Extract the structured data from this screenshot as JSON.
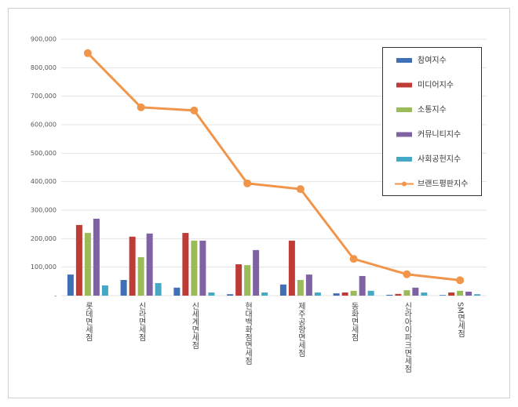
{
  "chart_data": {
    "type": "bar",
    "categories": [
      "롯데면세점",
      "신라면세점",
      "신세계면세점",
      "현대백화점면세점",
      "제주공항면세점",
      "동화면세점",
      "신라아이파크면세점",
      "SM면세점"
    ],
    "series": [
      {
        "name": "참여지수",
        "type": "bar",
        "color": "#3f6fb5",
        "values": [
          74000,
          55000,
          28000,
          5000,
          39000,
          8000,
          3000,
          2000
        ]
      },
      {
        "name": "미디어지수",
        "type": "bar",
        "color": "#be3b36",
        "values": [
          248000,
          207000,
          220000,
          110000,
          193000,
          11000,
          6000,
          11000
        ]
      },
      {
        "name": "소통지수",
        "type": "bar",
        "color": "#9bbb59",
        "values": [
          220000,
          135000,
          193000,
          107000,
          55000,
          17000,
          19000,
          17000
        ]
      },
      {
        "name": "커뮤니티지수",
        "type": "bar",
        "color": "#7f62a3",
        "values": [
          270000,
          218000,
          193000,
          160000,
          74000,
          69000,
          28000,
          14000
        ]
      },
      {
        "name": "사회공헌지수",
        "type": "bar",
        "color": "#45a9c6",
        "values": [
          36000,
          44000,
          11000,
          11000,
          11000,
          17000,
          11000,
          5000
        ]
      },
      {
        "name": "브랜드평판지수",
        "type": "line",
        "color": "#f0954a",
        "values": [
          851000,
          661000,
          650000,
          394000,
          374000,
          129000,
          75000,
          54000
        ]
      }
    ],
    "ylim": [
      0,
      900000
    ],
    "yticks": [
      {
        "value": 0,
        "label": "-"
      },
      {
        "value": 100000,
        "label": "100,000"
      },
      {
        "value": 200000,
        "label": "200,000"
      },
      {
        "value": 300000,
        "label": "300,000"
      },
      {
        "value": 400000,
        "label": "400,000"
      },
      {
        "value": 500000,
        "label": "500,000"
      },
      {
        "value": 600000,
        "label": "600,000"
      },
      {
        "value": 700000,
        "label": "700,000"
      },
      {
        "value": 800000,
        "label": "800,000"
      },
      {
        "value": 900000,
        "label": "900,000"
      }
    ],
    "grid": true,
    "legend": "top-right"
  }
}
